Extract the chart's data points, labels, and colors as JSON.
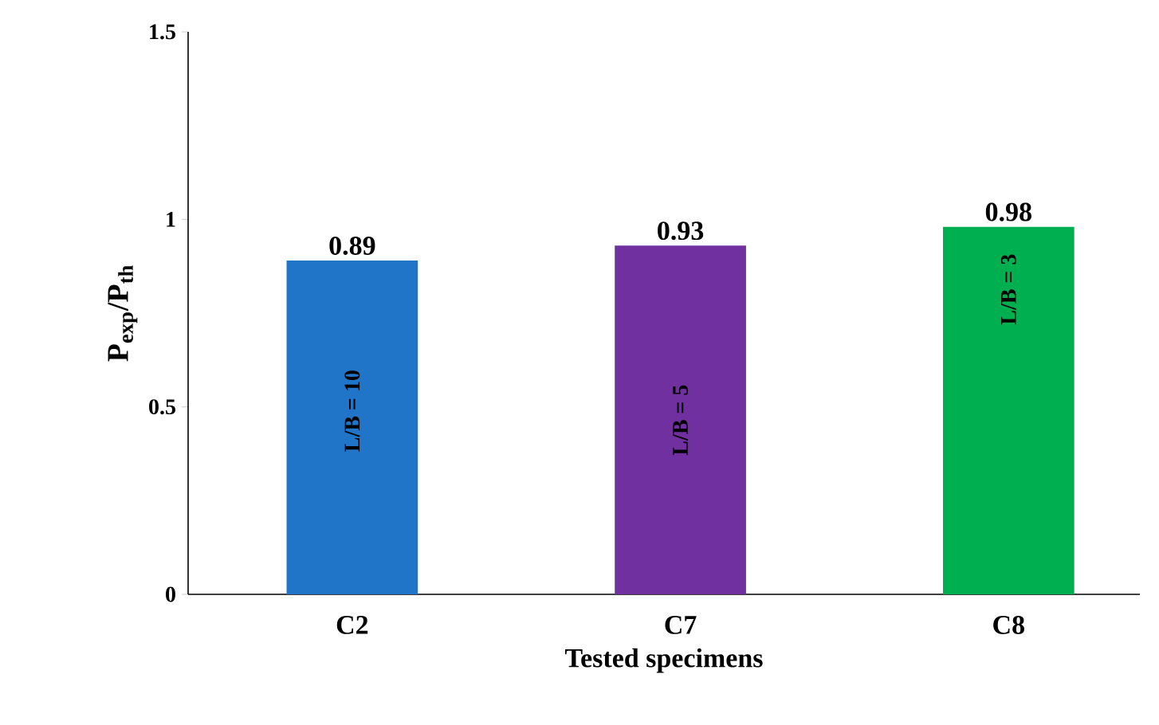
{
  "chart_data": {
    "type": "bar",
    "xlabel": "Tested specimens",
    "ylabel": "P$_{exp}$/P$_{th}$",
    "categories": [
      "C2",
      "C7",
      "C8"
    ],
    "values": [
      0.89,
      0.93,
      0.98
    ],
    "colors": [
      "#2175c9",
      "#7030a0",
      "#00b050"
    ],
    "ylim": [
      0,
      1.5
    ],
    "yticks": [
      0,
      0.5,
      1,
      1.5
    ],
    "data_labels": true,
    "annotations": [
      "L/B = 10",
      "L/B = 5",
      "L/B = 3"
    ]
  }
}
